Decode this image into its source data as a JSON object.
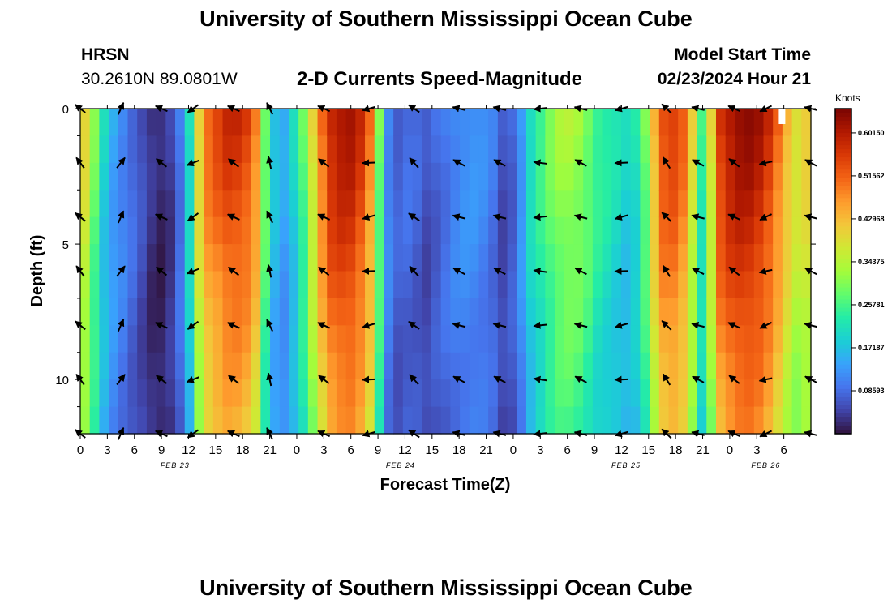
{
  "header": {
    "title": "University of Southern Mississippi Ocean Cube",
    "station": "HRSN",
    "coordinates": "30.2610N  89.0801W",
    "plot_title": "2-D Currents Speed-Magnitude",
    "model_start_label": "Model Start Time",
    "model_start_value": "02/23/2024 Hour 21"
  },
  "footer": {
    "title": "University of Southern Mississippi Ocean Cube"
  },
  "colorbar": {
    "unit": "Knots",
    "min": 0.0,
    "max": 0.65,
    "tick_labels": [
      "0.60150",
      "0.51562",
      "0.42968",
      "0.34375",
      "0.25781",
      "0.17187",
      "0.08593"
    ],
    "tick_values": [
      0.6015,
      0.51562,
      0.42968,
      0.34375,
      0.25781,
      0.17187,
      0.08593
    ],
    "colors": [
      "#30123b",
      "#4145ab",
      "#4675ed",
      "#39a2fc",
      "#1bcfd4",
      "#24eca6",
      "#61fc6c",
      "#a4fc3b",
      "#d1e834",
      "#f3c63a",
      "#fe9b2d",
      "#f36315",
      "#d93806",
      "#b11901",
      "#7a0402"
    ]
  },
  "chart_data": {
    "type": "heatmap",
    "title": "2-D Currents Speed-Magnitude",
    "xlabel": "Forecast Time(Z)",
    "ylabel": "Depth (ft)",
    "x_range_hours": [
      0,
      81
    ],
    "y_range_ft": [
      0,
      12
    ],
    "x_tick_labels": [
      "0",
      "3",
      "6",
      "9",
      "12",
      "15",
      "18",
      "21",
      "0",
      "3",
      "6",
      "9",
      "12",
      "15",
      "18",
      "21",
      "0",
      "3",
      "6",
      "9",
      "12",
      "15",
      "18",
      "21",
      "0",
      "3",
      "6"
    ],
    "date_labels": [
      {
        "label": "FEB 23",
        "hour": 10.5
      },
      {
        "label": "FEB 24",
        "hour": 35.5
      },
      {
        "label": "FEB 25",
        "hour": 60.5
      },
      {
        "label": "FEB 26",
        "hour": 76
      }
    ],
    "y_ticks": [
      0,
      5,
      10
    ],
    "y_tick_labels": [
      "0",
      "5",
      "10"
    ],
    "speed_profile_knots": [
      0.4,
      0.3,
      0.2,
      0.15,
      0.12,
      0.09,
      0.06,
      0.03,
      0.02,
      0.04,
      0.1,
      0.22,
      0.42,
      0.52,
      0.55,
      0.58,
      0.58,
      0.56,
      0.5,
      0.3,
      0.18,
      0.15,
      0.2,
      0.28,
      0.4,
      0.52,
      0.6,
      0.62,
      0.62,
      0.58,
      0.5,
      0.3,
      0.12,
      0.08,
      0.09,
      0.08,
      0.06,
      0.08,
      0.1,
      0.12,
      0.13,
      0.13,
      0.12,
      0.1,
      0.06,
      0.08,
      0.14,
      0.22,
      0.26,
      0.3,
      0.33,
      0.34,
      0.33,
      0.3,
      0.26,
      0.24,
      0.22,
      0.2,
      0.22,
      0.3,
      0.45,
      0.55,
      0.56,
      0.52,
      0.4,
      0.25,
      0.4,
      0.58,
      0.62,
      0.64,
      0.64,
      0.62,
      0.58,
      0.52,
      0.45,
      0.4,
      0.42
    ],
    "max_marker_hour": 77.8,
    "arrow_depths_ft": [
      0,
      2,
      4,
      6,
      8,
      10,
      12
    ],
    "arrow_hours": [
      0,
      4.5,
      9,
      12.5,
      17,
      21,
      27,
      32,
      37,
      42,
      46.5,
      51,
      55.5,
      60,
      65,
      68.5,
      72.5,
      76,
      81
    ],
    "arrow_directions_deg": [
      225,
      300,
      210,
      150,
      210,
      250,
      210,
      170,
      220,
      200,
      200,
      180,
      200,
      170,
      230,
      200,
      210,
      160,
      200
    ]
  }
}
